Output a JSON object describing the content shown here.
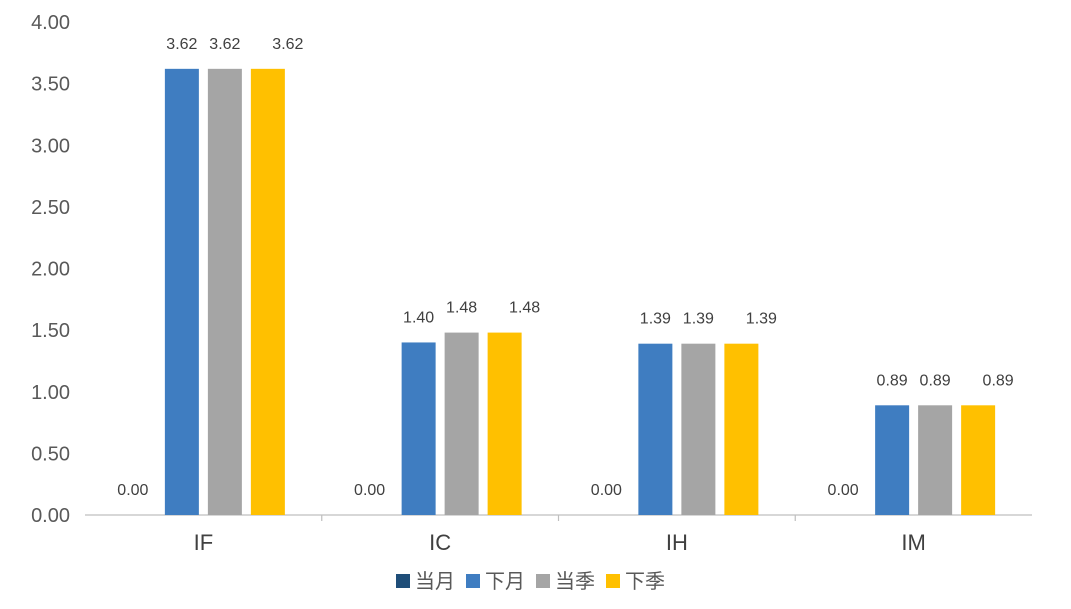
{
  "chart_data": {
    "type": "bar",
    "categories": [
      "IF",
      "IC",
      "IH",
      "IM"
    ],
    "series": [
      {
        "name": "当月",
        "color": "#1f4e79",
        "values": [
          0.0,
          0.0,
          0.0,
          0.0
        ],
        "labels": [
          "0.00",
          "0.00",
          "0.00",
          "0.00"
        ]
      },
      {
        "name": "下月",
        "color": "#3f7dc1",
        "values": [
          3.62,
          1.4,
          1.39,
          0.89
        ],
        "labels": [
          "3.62",
          "1.40",
          "1.39",
          "0.89"
        ]
      },
      {
        "name": "当季",
        "color": "#a5a5a5",
        "values": [
          3.62,
          1.48,
          1.39,
          0.89
        ],
        "labels": [
          "3.62",
          "1.48",
          "1.39",
          "0.89"
        ]
      },
      {
        "name": "下季",
        "color": "#ffc000",
        "values": [
          3.62,
          1.48,
          1.39,
          0.89
        ],
        "labels": [
          "3.62",
          "1.48",
          "1.39",
          "0.89"
        ]
      }
    ],
    "ylim": [
      0,
      4
    ],
    "yticks": [
      "0.00",
      "0.50",
      "1.00",
      "1.50",
      "2.00",
      "2.50",
      "3.00",
      "3.50",
      "4.00"
    ],
    "grid": false,
    "legend": "bottom-center"
  }
}
